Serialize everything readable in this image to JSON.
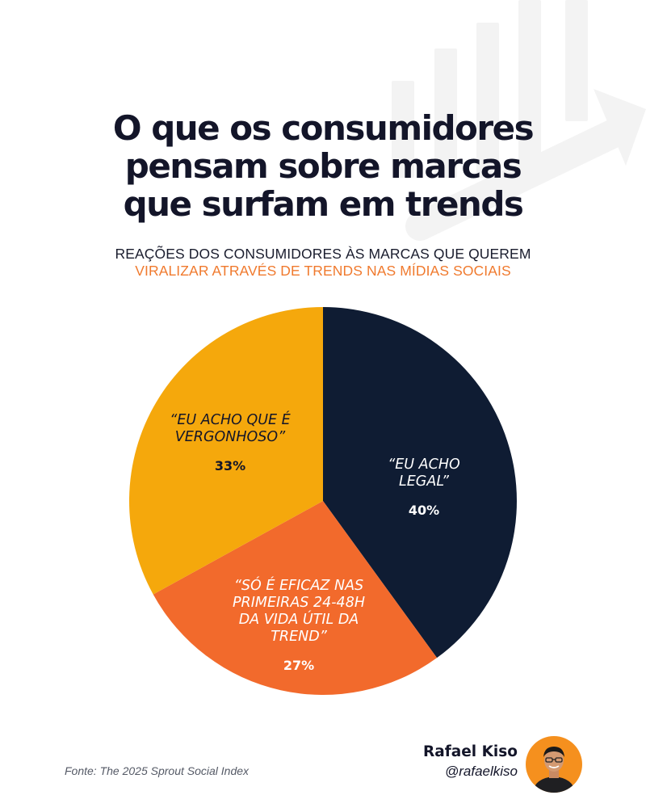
{
  "colors": {
    "navy": "#0f1c33",
    "orange": "#f26a2c",
    "yellow": "#f5a80c",
    "title": "#131529",
    "subtitle_highlight": "#f07a2e"
  },
  "header": {
    "title_lines": [
      "O que os consumidores",
      "pensam sobre marcas",
      "que surfam em trends"
    ],
    "subtitle_line1": "REAÇÕES DOS CONSUMIDORES ÀS MARCAS QUE QUEREM",
    "subtitle_line2": "VIRALIZAR ATRAVÉS DE TRENDS NAS MÍDIAS SOCIAIS"
  },
  "chart_data": {
    "type": "pie",
    "unit": "%",
    "slices": [
      {
        "label_lines": [
          "“EU ACHO",
          "LEGAL”"
        ],
        "value": 40,
        "value_label": "40%",
        "color": "#0f1c33",
        "text_color": "#ffffff"
      },
      {
        "label_lines": [
          "“SÓ É EFICAZ NAS",
          "PRIMEIRAS 24-48H",
          "DA VIDA ÚTIL DA",
          "TREND”"
        ],
        "value": 27,
        "value_label": "27%",
        "color": "#f26a2c",
        "text_color": "#ffffff"
      },
      {
        "label_lines": [
          "“EU ACHO QUE É",
          "VERGONHOSO”"
        ],
        "value": 33,
        "value_label": "33%",
        "color": "#f5a80c",
        "text_color": "#131529"
      }
    ]
  },
  "footer": {
    "source": "Fonte: The 2025 Sprout Social Index",
    "author_name": "Rafael Kiso",
    "author_handle": "@rafaelkiso"
  },
  "icons": {
    "watermark": "bar-chart-arrow-icon",
    "avatar": "avatar"
  }
}
